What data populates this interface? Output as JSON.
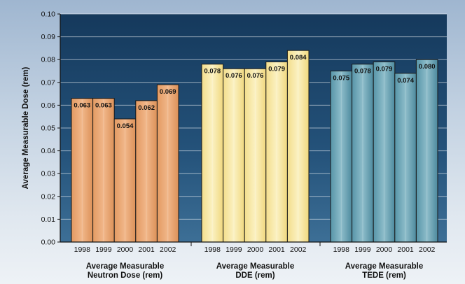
{
  "chart_data": {
    "type": "bar",
    "ylabel": "Average Measurable Dose  (rem)",
    "ylim": [
      0,
      0.1
    ],
    "yticks": [
      "0.00",
      "0.01",
      "0.02",
      "0.03",
      "0.04",
      "0.05",
      "0.06",
      "0.07",
      "0.08",
      "0.09",
      "0.10"
    ],
    "grid": true,
    "groups": [
      {
        "label_line1": "Average Measurable",
        "label_line2": "Neutron Dose (rem)",
        "color": "#e8a06a",
        "categories": [
          "1998",
          "1999",
          "2000",
          "2001",
          "2002"
        ],
        "values": [
          0.063,
          0.063,
          0.054,
          0.062,
          0.069
        ],
        "data_labels": [
          "0.063",
          "0.063",
          "0.054",
          "0.062",
          "0.069"
        ]
      },
      {
        "label_line1": "Average Measurable",
        "label_line2": "DDE (rem)",
        "color": "#f5e59c",
        "categories": [
          "1998",
          "1999",
          "2000",
          "2001",
          "2002"
        ],
        "values": [
          0.078,
          0.076,
          0.076,
          0.079,
          0.084
        ],
        "data_labels": [
          "0.078",
          "0.076",
          "0.076",
          "0.079",
          "0.084"
        ]
      },
      {
        "label_line1": "Average Measurable",
        "label_line2": "TEDE (rem)",
        "color": "#5f9bad",
        "categories": [
          "1998",
          "1999",
          "2000",
          "2001",
          "2002"
        ],
        "values": [
          0.075,
          0.078,
          0.079,
          0.074,
          0.08
        ],
        "data_labels": [
          "0.075",
          "0.078",
          "0.079",
          "0.074",
          "0.080"
        ]
      }
    ],
    "plot_background": "#1e4468"
  }
}
